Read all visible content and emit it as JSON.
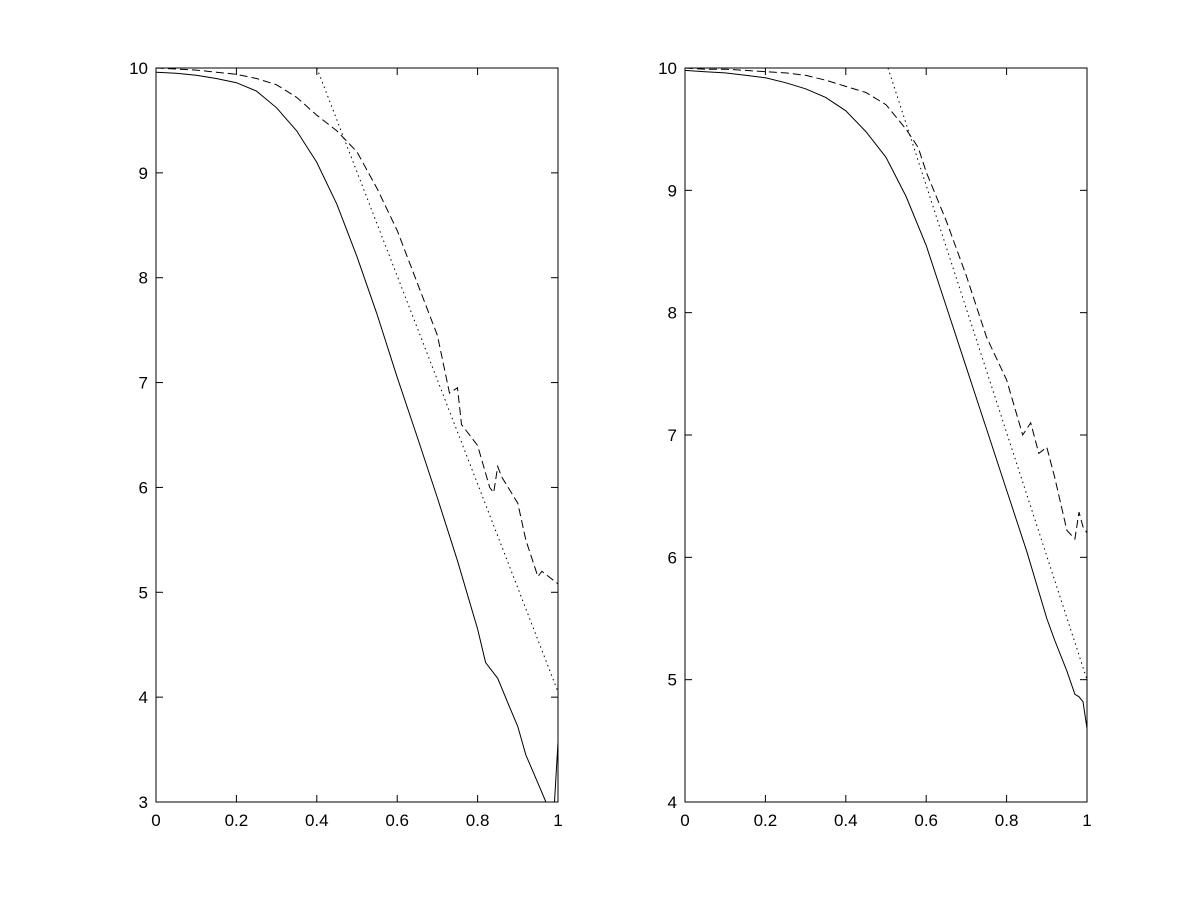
{
  "chart_data": [
    {
      "type": "line",
      "title": "",
      "xlabel": "",
      "ylabel": "",
      "xlim": [
        0,
        1
      ],
      "ylim": [
        3,
        10
      ],
      "xticks": [
        0,
        0.2,
        0.4,
        0.6,
        0.8,
        1
      ],
      "yticks": [
        3,
        4,
        5,
        6,
        7,
        8,
        9,
        10
      ],
      "xtick_labels": [
        "0",
        "0.2",
        "0.4",
        "0.6",
        "0.8",
        "1"
      ],
      "ytick_labels": [
        "3",
        "4",
        "5",
        "6",
        "7",
        "8",
        "9",
        "10"
      ],
      "grid": false,
      "series": [
        {
          "style": "solid",
          "x": [
            0,
            0.05,
            0.1,
            0.15,
            0.2,
            0.25,
            0.3,
            0.35,
            0.4,
            0.45,
            0.5,
            0.55,
            0.6,
            0.65,
            0.7,
            0.75,
            0.8,
            0.82,
            0.85,
            0.88,
            0.9,
            0.92,
            0.95,
            0.97,
            0.98,
            0.99,
            1.0
          ],
          "y": [
            9.96,
            9.95,
            9.93,
            9.9,
            9.86,
            9.78,
            9.62,
            9.4,
            9.1,
            8.7,
            8.2,
            7.65,
            7.05,
            6.48,
            5.9,
            5.3,
            4.65,
            4.33,
            4.18,
            3.9,
            3.72,
            3.45,
            3.18,
            3.0,
            2.97,
            2.92,
            3.57
          ]
        },
        {
          "style": "dashed",
          "x": [
            0,
            0.05,
            0.1,
            0.15,
            0.2,
            0.25,
            0.3,
            0.35,
            0.4,
            0.45,
            0.5,
            0.55,
            0.6,
            0.65,
            0.7,
            0.73,
            0.75,
            0.76,
            0.8,
            0.83,
            0.84,
            0.85,
            0.86,
            0.9,
            0.92,
            0.95,
            0.96,
            1.0
          ],
          "y": [
            10.0,
            9.99,
            9.98,
            9.96,
            9.94,
            9.9,
            9.84,
            9.72,
            9.55,
            9.4,
            9.2,
            8.85,
            8.45,
            7.95,
            7.45,
            6.9,
            6.95,
            6.6,
            6.4,
            6.0,
            5.95,
            6.2,
            6.1,
            5.85,
            5.5,
            5.15,
            5.2,
            5.08
          ]
        },
        {
          "style": "dotted",
          "x": [
            0.4,
            1.0
          ],
          "y": [
            10.0,
            4.05
          ]
        }
      ]
    },
    {
      "type": "line",
      "title": "",
      "xlabel": "",
      "ylabel": "",
      "xlim": [
        0,
        1
      ],
      "ylim": [
        4,
        10
      ],
      "xticks": [
        0,
        0.2,
        0.4,
        0.6,
        0.8,
        1
      ],
      "yticks": [
        4,
        5,
        6,
        7,
        8,
        9,
        10
      ],
      "xtick_labels": [
        "0",
        "0.2",
        "0.4",
        "0.6",
        "0.8",
        "1"
      ],
      "ytick_labels": [
        "4",
        "5",
        "6",
        "7",
        "8",
        "9",
        "10"
      ],
      "grid": false,
      "series": [
        {
          "style": "solid",
          "x": [
            0,
            0.05,
            0.1,
            0.15,
            0.2,
            0.25,
            0.3,
            0.35,
            0.4,
            0.45,
            0.5,
            0.55,
            0.6,
            0.65,
            0.7,
            0.75,
            0.8,
            0.85,
            0.9,
            0.92,
            0.95,
            0.97,
            0.98,
            0.99,
            1.0
          ],
          "y": [
            9.98,
            9.97,
            9.96,
            9.94,
            9.92,
            9.88,
            9.83,
            9.76,
            9.65,
            9.48,
            9.27,
            8.95,
            8.55,
            8.05,
            7.55,
            7.05,
            6.55,
            6.05,
            5.5,
            5.32,
            5.07,
            4.88,
            4.86,
            4.82,
            4.6
          ]
        },
        {
          "style": "dashed",
          "x": [
            0,
            0.05,
            0.1,
            0.15,
            0.2,
            0.25,
            0.3,
            0.35,
            0.4,
            0.45,
            0.5,
            0.55,
            0.58,
            0.6,
            0.65,
            0.7,
            0.75,
            0.8,
            0.84,
            0.86,
            0.88,
            0.9,
            0.92,
            0.95,
            0.97,
            0.98,
            0.99,
            1.0
          ],
          "y": [
            10.0,
            9.99,
            9.99,
            9.98,
            9.97,
            9.96,
            9.94,
            9.9,
            9.85,
            9.8,
            9.7,
            9.5,
            9.35,
            9.15,
            8.75,
            8.3,
            7.8,
            7.45,
            7.0,
            7.1,
            6.85,
            6.9,
            6.65,
            6.22,
            6.15,
            6.37,
            6.25,
            6.2
          ]
        },
        {
          "style": "dotted",
          "x": [
            0.505,
            1.0
          ],
          "y": [
            10.0,
            5.0
          ]
        }
      ]
    }
  ]
}
